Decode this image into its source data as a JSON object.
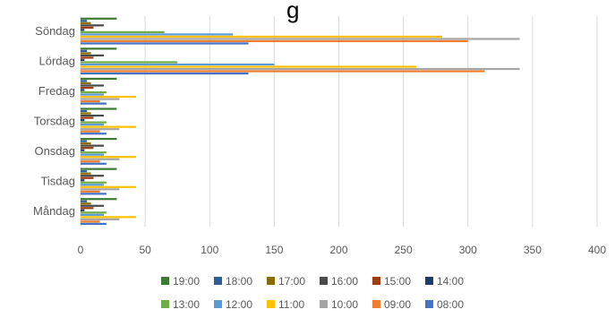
{
  "title_fragment": "g",
  "chart_data": {
    "type": "bar",
    "orientation": "horizontal",
    "categories": [
      "Måndag",
      "Tisdag",
      "Onsdag",
      "Torsdag",
      "Fredag",
      "Lördag",
      "Söndag"
    ],
    "xlim": [
      0,
      400
    ],
    "xticks": [
      0,
      50,
      100,
      150,
      200,
      250,
      300,
      350,
      400
    ],
    "grid": true,
    "legend_position": "bottom",
    "series": [
      {
        "name": "19:00",
        "color": "#3e7a33",
        "values": [
          28,
          28,
          28,
          28,
          28,
          28,
          28
        ]
      },
      {
        "name": "18:00",
        "color": "#2f5f98",
        "values": [
          5,
          5,
          5,
          5,
          5,
          5,
          5
        ]
      },
      {
        "name": "17:00",
        "color": "#8a6d00",
        "values": [
          8,
          8,
          8,
          8,
          8,
          8,
          8
        ]
      },
      {
        "name": "16:00",
        "color": "#4a4a4a",
        "values": [
          18,
          18,
          18,
          18,
          18,
          18,
          18
        ]
      },
      {
        "name": "15:00",
        "color": "#9c3d12",
        "values": [
          10,
          10,
          10,
          10,
          10,
          10,
          10
        ]
      },
      {
        "name": "14:00",
        "color": "#1f3b6e",
        "values": [
          3,
          3,
          3,
          3,
          3,
          3,
          3
        ]
      },
      {
        "name": "13:00",
        "color": "#70ad47",
        "values": [
          20,
          20,
          20,
          20,
          20,
          75,
          65
        ]
      },
      {
        "name": "12:00",
        "color": "#5b9bd5",
        "values": [
          18,
          18,
          18,
          18,
          18,
          150,
          118
        ]
      },
      {
        "name": "11:00",
        "color": "#ffc000",
        "values": [
          43,
          43,
          43,
          43,
          43,
          260,
          280
        ]
      },
      {
        "name": "10:00",
        "color": "#a5a5a5",
        "values": [
          30,
          30,
          30,
          30,
          30,
          340,
          340
        ]
      },
      {
        "name": "09:00",
        "color": "#ed7d31",
        "values": [
          15,
          15,
          15,
          15,
          15,
          313,
          300
        ]
      },
      {
        "name": "08:00",
        "color": "#4472c4",
        "values": [
          20,
          20,
          20,
          20,
          20,
          130,
          130
        ]
      }
    ],
    "legend_rows": [
      [
        "19:00",
        "18:00",
        "17:00",
        "16:00",
        "15:00",
        "14:00"
      ],
      [
        "13:00",
        "12:00",
        "11:00",
        "10:00",
        "09:00",
        "08:00"
      ]
    ]
  }
}
